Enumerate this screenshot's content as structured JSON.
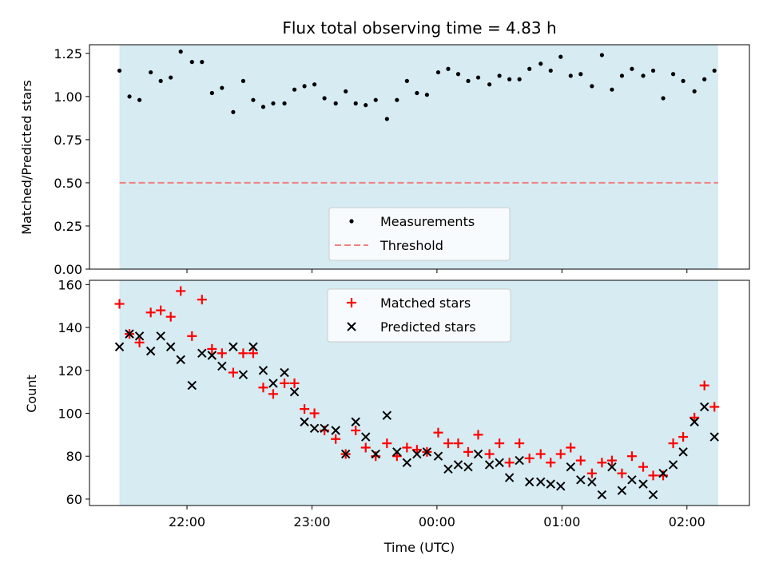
{
  "chart_data": {
    "title": "Flux total observing time = 4.83 h",
    "xlabel": "Time (UTC)",
    "x_tick_labels": [
      "22:00",
      "23:00",
      "00:00",
      "01:00",
      "02:00"
    ],
    "x_tick_hours": [
      22,
      23,
      24,
      25,
      26
    ],
    "xlim_hours": [
      21.22,
      26.5
    ],
    "shaded_interval_hours": [
      21.46,
      26.25
    ],
    "times_hours": [
      21.46,
      21.54,
      21.62,
      21.71,
      21.79,
      21.87,
      21.95,
      22.04,
      22.12,
      22.2,
      22.28,
      22.37,
      22.45,
      22.53,
      22.61,
      22.69,
      22.78,
      22.86,
      22.94,
      23.02,
      23.1,
      23.19,
      23.27,
      23.35,
      23.43,
      23.51,
      23.6,
      23.68,
      23.76,
      23.84,
      23.92,
      24.01,
      24.09,
      24.17,
      24.25,
      24.33,
      24.42,
      24.5,
      24.58,
      24.66,
      24.74,
      24.83,
      24.91,
      24.99,
      25.07,
      25.15,
      25.24,
      25.32,
      25.4,
      25.48,
      25.56,
      25.65,
      25.73,
      25.81,
      25.89,
      25.97,
      26.06,
      26.14,
      26.22
    ],
    "panels": [
      {
        "type": "scatter",
        "ylabel": "Matched/Predicted stars",
        "ylim": [
          0,
          1.3
        ],
        "y_ticks": [
          0.0,
          0.25,
          0.5,
          0.75,
          1.0,
          1.25
        ],
        "y_tick_labels": [
          "0.00",
          "0.25",
          "0.50",
          "0.75",
          "1.00",
          "1.25"
        ],
        "threshold": 0.5,
        "legend_position": "lower-center",
        "series": [
          {
            "name": "Measurements",
            "marker": "dot",
            "color": "#000000",
            "values": [
              1.15,
              1.0,
              0.98,
              1.14,
              1.09,
              1.11,
              1.26,
              1.2,
              1.2,
              1.02,
              1.05,
              0.91,
              1.09,
              0.98,
              0.94,
              0.96,
              0.96,
              1.04,
              1.06,
              1.07,
              0.99,
              0.96,
              1.03,
              0.96,
              0.95,
              0.98,
              0.87,
              0.98,
              1.09,
              1.02,
              1.01,
              1.14,
              1.16,
              1.13,
              1.09,
              1.11,
              1.07,
              1.12,
              1.1,
              1.1,
              1.16,
              1.19,
              1.15,
              1.23,
              1.12,
              1.13,
              1.06,
              1.24,
              1.04,
              1.12,
              1.16,
              1.12,
              1.15,
              0.99,
              1.13,
              1.09,
              1.03,
              1.1,
              1.15
            ]
          },
          {
            "name": "Threshold",
            "marker": "dashed-line",
            "color": "#f08080"
          }
        ]
      },
      {
        "type": "scatter",
        "ylabel": "Count",
        "ylim": [
          57,
          162
        ],
        "y_ticks": [
          60,
          80,
          100,
          120,
          140,
          160
        ],
        "y_tick_labels": [
          "60",
          "80",
          "100",
          "120",
          "140",
          "160"
        ],
        "legend_position": "upper-center",
        "series": [
          {
            "name": "Matched stars",
            "marker": "plus",
            "color": "#ff0000",
            "values": [
              151,
              137,
              133,
              147,
              148,
              145,
              157,
              136,
              153,
              130,
              128,
              119,
              128,
              128,
              112,
              109,
              114,
              114,
              102,
              100,
              92,
              88,
              81,
              92,
              84,
              80,
              86,
              80,
              84,
              83,
              82,
              91,
              86,
              86,
              82,
              90,
              81,
              86,
              77,
              86,
              79,
              81,
              77,
              81,
              84,
              78,
              72,
              77,
              78,
              72,
              80,
              75,
              71,
              71,
              86,
              89,
              98,
              113,
              103
            ]
          },
          {
            "name": "Predicted stars",
            "marker": "x",
            "color": "#000000",
            "values": [
              131,
              137,
              136,
              129,
              136,
              131,
              125,
              113,
              128,
              127,
              122,
              131,
              118,
              131,
              120,
              114,
              119,
              110,
              96,
              93,
              93,
              92,
              81,
              96,
              89,
              81,
              99,
              82,
              77,
              81,
              82,
              80,
              74,
              76,
              75,
              81,
              76,
              77,
              70,
              78,
              68,
              68,
              67,
              66,
              75,
              69,
              68,
              62,
              75,
              64,
              69,
              67,
              62,
              72,
              76,
              82,
              96,
              103,
              89
            ]
          }
        ]
      }
    ],
    "colors": {
      "shade": "#add8e6",
      "threshold": "#f08080",
      "matched": "#ff0000",
      "predicted": "#000000",
      "measurement": "#000000"
    }
  }
}
